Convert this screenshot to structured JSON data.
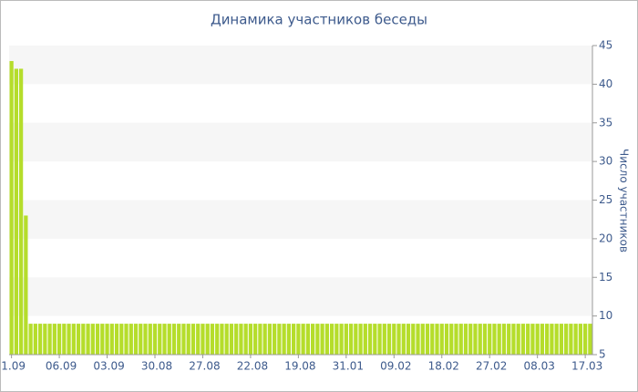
{
  "chart_data": {
    "type": "bar",
    "title": "Динамика участников беседы",
    "y_label": "Число участников",
    "categories": [
      "1.09",
      null,
      null,
      null,
      null,
      null,
      null,
      null,
      null,
      null,
      "06.09",
      null,
      null,
      null,
      null,
      null,
      null,
      null,
      null,
      null,
      "03.09",
      null,
      null,
      null,
      null,
      null,
      null,
      null,
      null,
      null,
      "30.08",
      null,
      null,
      null,
      null,
      null,
      null,
      null,
      null,
      null,
      "27.08",
      null,
      null,
      null,
      null,
      null,
      null,
      null,
      null,
      null,
      "22.08",
      null,
      null,
      null,
      null,
      null,
      null,
      null,
      null,
      null,
      "19.08",
      null,
      null,
      null,
      null,
      null,
      null,
      null,
      null,
      null,
      "31.01",
      null,
      null,
      null,
      null,
      null,
      null,
      null,
      null,
      null,
      "09.02",
      null,
      null,
      null,
      null,
      null,
      null,
      null,
      null,
      null,
      "18.02",
      null,
      null,
      null,
      null,
      null,
      null,
      null,
      null,
      null,
      "27.02",
      null,
      null,
      null,
      null,
      null,
      null,
      null,
      null,
      null,
      "08.03",
      null,
      null,
      null,
      null,
      null,
      null,
      null,
      null,
      null,
      "17.03",
      null
    ],
    "values": [
      43,
      42,
      42,
      23,
      9,
      9,
      9,
      9,
      9,
      9,
      9,
      9,
      9,
      9,
      9,
      9,
      9,
      9,
      9,
      9,
      9,
      9,
      9,
      9,
      9,
      9,
      9,
      9,
      9,
      9,
      9,
      9,
      9,
      9,
      9,
      9,
      9,
      9,
      9,
      9,
      9,
      9,
      9,
      9,
      9,
      9,
      9,
      9,
      9,
      9,
      9,
      9,
      9,
      9,
      9,
      9,
      9,
      9,
      9,
      9,
      9,
      9,
      9,
      9,
      9,
      9,
      9,
      9,
      9,
      9,
      9,
      9,
      9,
      9,
      9,
      9,
      9,
      9,
      9,
      9,
      9,
      9,
      9,
      9,
      9,
      9,
      9,
      9,
      9,
      9,
      9,
      9,
      9,
      9,
      9,
      9,
      9,
      9,
      9,
      9,
      9,
      9,
      9,
      9,
      9,
      9,
      9,
      9,
      9,
      9,
      9,
      9,
      9,
      9,
      9,
      9,
      9,
      9,
      9,
      9,
      9,
      9
    ],
    "color": "#b5dd2b",
    "ylim": [
      5,
      45
    ],
    "yticks": [
      5,
      10,
      15,
      20,
      25,
      30,
      35,
      40,
      45
    ],
    "grid": true
  }
}
